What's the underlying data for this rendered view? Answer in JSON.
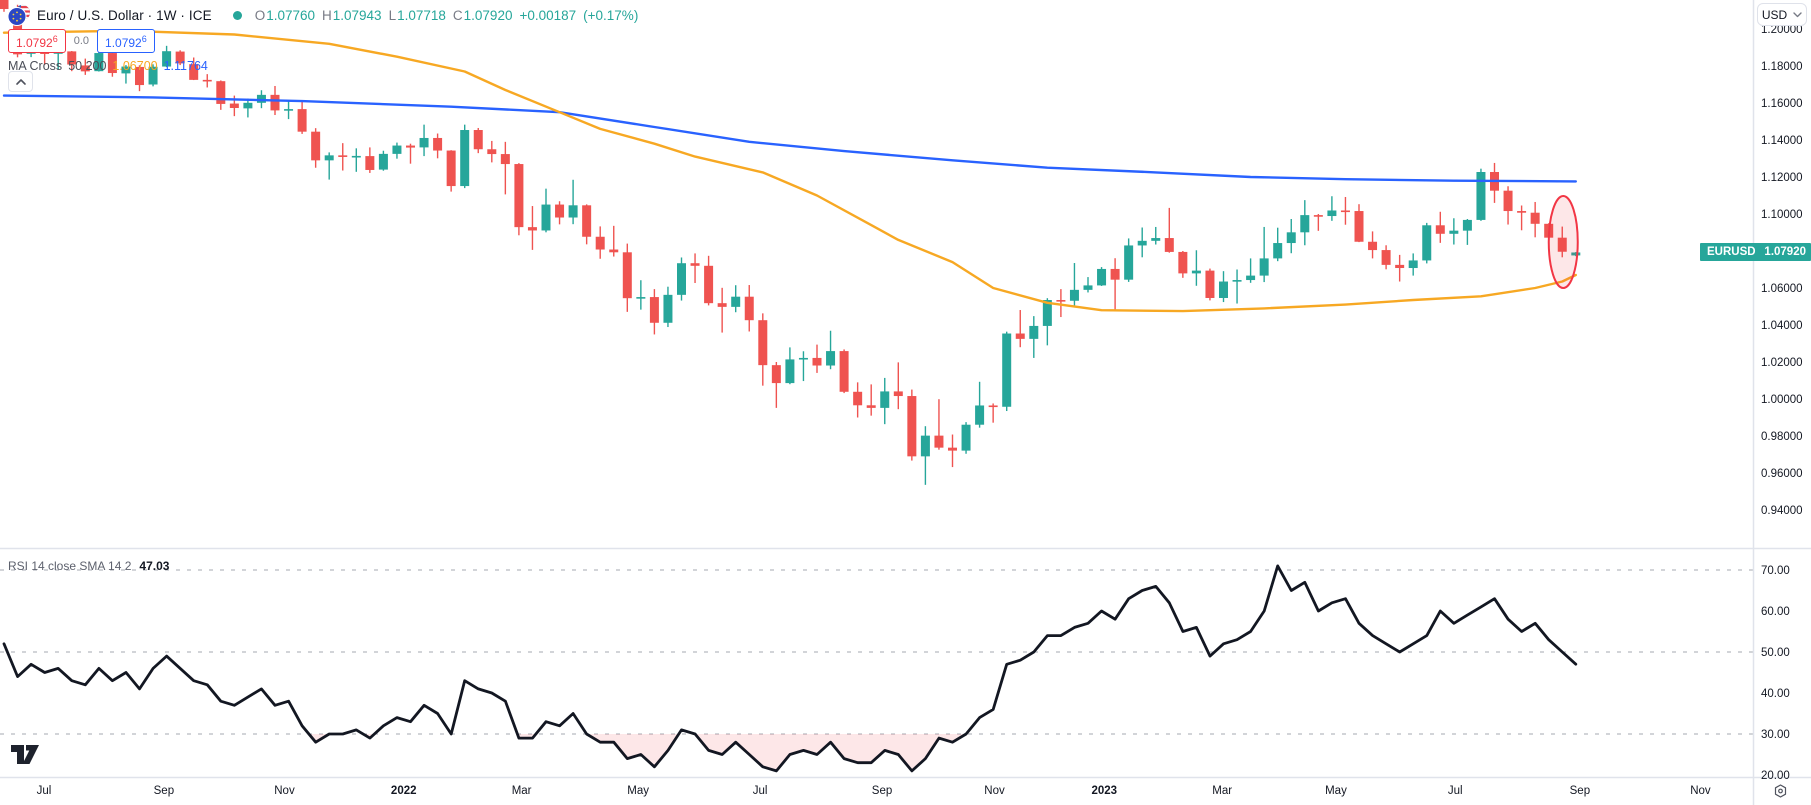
{
  "header": {
    "symbol_title": "Euro / U.S. Dollar · 1W · ICE",
    "ohlc": {
      "o_label": "O",
      "o": "1.07760",
      "h_label": "H",
      "h": "1.07943",
      "l_label": "L",
      "l": "1.07718",
      "c_label": "C",
      "c": "1.07920",
      "change": "+0.00187",
      "change_pct": "(+0.17%)"
    }
  },
  "labels_row": {
    "red_value": "1.0792",
    "red_sup": "6",
    "middle": "0.0",
    "blue_value": "1.0792",
    "blue_sup": "6"
  },
  "ma_row": {
    "name": "MA Cross",
    "params": "50 200",
    "fast_value": "1.06700",
    "slow_value": "1.11764"
  },
  "rsi_row": {
    "name": "RSI 14 close SMA 14 2",
    "value": "47.03"
  },
  "currency_button": {
    "label": "USD"
  },
  "price_pill": {
    "symbol": "EURUSD",
    "price": "1.07920"
  },
  "axes": {
    "price_ticks": [
      {
        "label": "1.20000",
        "value": 1.2
      },
      {
        "label": "1.18000",
        "value": 1.18
      },
      {
        "label": "1.16000",
        "value": 1.16
      },
      {
        "label": "1.14000",
        "value": 1.14
      },
      {
        "label": "1.12000",
        "value": 1.12
      },
      {
        "label": "1.10000",
        "value": 1.1
      },
      {
        "label": "1.06000",
        "value": 1.06
      },
      {
        "label": "1.04000",
        "value": 1.04
      },
      {
        "label": "1.02000",
        "value": 1.02
      },
      {
        "label": "1.00000",
        "value": 1.0
      },
      {
        "label": "0.98000",
        "value": 0.98
      },
      {
        "label": "0.96000",
        "value": 0.96
      },
      {
        "label": "0.94000",
        "value": 0.94
      }
    ],
    "rsi_ticks": [
      {
        "label": "70.00",
        "value": 70
      },
      {
        "label": "60.00",
        "value": 60
      },
      {
        "label": "50.00",
        "value": 50
      },
      {
        "label": "40.00",
        "value": 40
      },
      {
        "label": "30.00",
        "value": 30
      },
      {
        "label": "20.00",
        "value": 20
      }
    ],
    "rsi_dashed_levels": [
      70,
      50,
      30
    ],
    "time_ticks": [
      {
        "label": "Jul",
        "index": 2.95,
        "bold": false
      },
      {
        "label": "Sep",
        "index": 11.8,
        "bold": false
      },
      {
        "label": "Nov",
        "index": 20.7,
        "bold": false
      },
      {
        "label": "2022",
        "index": 29.5,
        "bold": true
      },
      {
        "label": "Mar",
        "index": 38.2,
        "bold": false
      },
      {
        "label": "May",
        "index": 46.8,
        "bold": false
      },
      {
        "label": "Jul",
        "index": 55.8,
        "bold": false
      },
      {
        "label": "Sep",
        "index": 64.8,
        "bold": false
      },
      {
        "label": "Nov",
        "index": 73.1,
        "bold": false
      },
      {
        "label": "2023",
        "index": 81.2,
        "bold": true
      },
      {
        "label": "Mar",
        "index": 89.9,
        "bold": false
      },
      {
        "label": "May",
        "index": 98.3,
        "bold": false
      },
      {
        "label": "Jul",
        "index": 107.1,
        "bold": false
      },
      {
        "label": "Sep",
        "index": 116.3,
        "bold": false
      },
      {
        "label": "Nov",
        "index": 125.2,
        "bold": false
      }
    ]
  },
  "colors": {
    "up": "#26a69a",
    "down": "#ef5350",
    "ma_fast": "#f7a823",
    "ma_slow": "#2962ff",
    "highlight": "#f23645",
    "rsi_line": "#131722",
    "text": "#131722",
    "muted": "#787b86",
    "border": "#e0e3eb",
    "grid_dash": "#a5a8b1",
    "pill_bg": "#26a69a"
  },
  "chart_data": {
    "type": "candlestick",
    "symbol": "EURUSD",
    "timeframe": "1W",
    "exchange": "ICE",
    "title": "Euro / U.S. Dollar",
    "price_axis_range": [
      0.92,
      1.21
    ],
    "rsi_axis_range": [
      17,
      75
    ],
    "legend_position": "top-left",
    "grid": "dashed horizontal lines in RSI pane at 70/50/30 only",
    "candles": [
      [
        "2021-06-07",
        1.2166,
        1.2195,
        1.2093,
        1.2108
      ],
      [
        "2021-06-14",
        1.2109,
        1.2131,
        1.1847,
        1.1863
      ],
      [
        "2021-06-21",
        1.1866,
        1.197,
        1.1848,
        1.1938
      ],
      [
        "2021-06-28",
        1.1937,
        1.1945,
        1.1806,
        1.1865
      ],
      [
        "2021-07-05",
        1.1866,
        1.1895,
        1.1781,
        1.1876
      ],
      [
        "2021-07-12",
        1.1879,
        1.1881,
        1.1772,
        1.1808
      ],
      [
        "2021-07-19",
        1.1803,
        1.184,
        1.1752,
        1.1771
      ],
      [
        "2021-07-26",
        1.1772,
        1.1909,
        1.177,
        1.187
      ],
      [
        "2021-08-02",
        1.187,
        1.1899,
        1.1742,
        1.1762
      ],
      [
        "2021-08-09",
        1.176,
        1.1805,
        1.1705,
        1.1797
      ],
      [
        "2021-08-16",
        1.1795,
        1.1804,
        1.1664,
        1.1697
      ],
      [
        "2021-08-23",
        1.17,
        1.1809,
        1.169,
        1.1796
      ],
      [
        "2021-08-30",
        1.1797,
        1.1909,
        1.1794,
        1.188
      ],
      [
        "2021-09-06",
        1.1878,
        1.1885,
        1.1805,
        1.1814
      ],
      [
        "2021-09-13",
        1.181,
        1.1846,
        1.1724,
        1.1725
      ],
      [
        "2021-09-20",
        1.1725,
        1.1756,
        1.1684,
        1.172
      ],
      [
        "2021-09-27",
        1.1718,
        1.1722,
        1.1563,
        1.1595
      ],
      [
        "2021-10-04",
        1.1597,
        1.164,
        1.1529,
        1.1573
      ],
      [
        "2021-10-11",
        1.1571,
        1.1624,
        1.1522,
        1.1601
      ],
      [
        "2021-10-18",
        1.1601,
        1.1669,
        1.1572,
        1.1644
      ],
      [
        "2021-10-25",
        1.1644,
        1.1692,
        1.1535,
        1.156
      ],
      [
        "2021-11-01",
        1.1562,
        1.1616,
        1.1513,
        1.1567
      ],
      [
        "2021-11-08",
        1.1567,
        1.1609,
        1.1433,
        1.1445
      ],
      [
        "2021-11-15",
        1.1445,
        1.1464,
        1.125,
        1.129
      ],
      [
        "2021-11-22",
        1.129,
        1.1333,
        1.1186,
        1.1317
      ],
      [
        "2021-11-29",
        1.1317,
        1.1383,
        1.1235,
        1.1312
      ],
      [
        "2021-12-06",
        1.1312,
        1.1355,
        1.1228,
        1.1314
      ],
      [
        "2021-12-13",
        1.1313,
        1.136,
        1.1222,
        1.1238
      ],
      [
        "2021-12-20",
        1.124,
        1.1342,
        1.1234,
        1.1325
      ],
      [
        "2021-12-27",
        1.1325,
        1.1386,
        1.1299,
        1.137
      ],
      [
        "2022-01-03",
        1.137,
        1.138,
        1.1272,
        1.1359
      ],
      [
        "2022-01-10",
        1.136,
        1.1483,
        1.1313,
        1.1411
      ],
      [
        "2022-01-17",
        1.1411,
        1.1435,
        1.1301,
        1.1343
      ],
      [
        "2022-01-24",
        1.1343,
        1.1345,
        1.1121,
        1.1151
      ],
      [
        "2022-01-31",
        1.1151,
        1.1483,
        1.114,
        1.1454
      ],
      [
        "2022-02-07",
        1.1454,
        1.1465,
        1.1329,
        1.135
      ],
      [
        "2022-02-14",
        1.135,
        1.1395,
        1.1279,
        1.1324
      ],
      [
        "2022-02-21",
        1.1324,
        1.139,
        1.1106,
        1.127
      ],
      [
        "2022-02-28",
        1.127,
        1.1275,
        1.0885,
        1.0929
      ],
      [
        "2022-03-07",
        1.0929,
        1.1043,
        1.0806,
        1.0911
      ],
      [
        "2022-03-14",
        1.0911,
        1.1137,
        1.0901,
        1.1051
      ],
      [
        "2022-03-21",
        1.1051,
        1.1069,
        1.0944,
        1.0981
      ],
      [
        "2022-03-28",
        1.0981,
        1.1185,
        1.0945,
        1.1047
      ],
      [
        "2022-04-04",
        1.1047,
        1.1052,
        1.0836,
        1.0877
      ],
      [
        "2022-04-11",
        1.0877,
        1.0933,
        1.0758,
        1.0808
      ],
      [
        "2022-04-18",
        1.0808,
        1.0936,
        1.077,
        1.0793
      ],
      [
        "2022-04-25",
        1.0793,
        1.084,
        1.0471,
        1.0545
      ],
      [
        "2022-05-02",
        1.0545,
        1.0642,
        1.0483,
        1.0551
      ],
      [
        "2022-05-09",
        1.0551,
        1.0594,
        1.0349,
        1.0412
      ],
      [
        "2022-05-16",
        1.0412,
        1.0607,
        1.0389,
        1.0563
      ],
      [
        "2022-05-23",
        1.0563,
        1.0765,
        1.0532,
        1.0734
      ],
      [
        "2022-05-30",
        1.0734,
        1.0787,
        1.0627,
        1.072
      ],
      [
        "2022-06-06",
        1.072,
        1.0774,
        1.0506,
        1.0518
      ],
      [
        "2022-06-13",
        1.0518,
        1.0601,
        1.0359,
        1.0498
      ],
      [
        "2022-06-20",
        1.0498,
        1.0615,
        1.0469,
        1.0553
      ],
      [
        "2022-06-27",
        1.0553,
        1.0616,
        1.0365,
        1.0426
      ],
      [
        "2022-07-04",
        1.0426,
        1.0463,
        1.0072,
        1.0183
      ],
      [
        "2022-07-11",
        1.0183,
        1.02,
        0.9952,
        1.0086
      ],
      [
        "2022-07-18",
        1.0086,
        1.0279,
        1.008,
        1.0214
      ],
      [
        "2022-07-25",
        1.0214,
        1.0258,
        1.0097,
        1.0222
      ],
      [
        "2022-08-01",
        1.0222,
        1.0294,
        1.0141,
        1.0181
      ],
      [
        "2022-08-08",
        1.0181,
        1.0369,
        1.0161,
        1.0259
      ],
      [
        "2022-08-15",
        1.0259,
        1.0268,
        1.0032,
        1.0039
      ],
      [
        "2022-08-22",
        1.0039,
        1.009,
        0.99,
        0.9966
      ],
      [
        "2022-08-29",
        0.9966,
        1.0079,
        0.991,
        0.9952
      ],
      [
        "2022-09-05",
        0.9952,
        1.0114,
        0.9864,
        1.0041
      ],
      [
        "2022-09-12",
        1.0041,
        1.0198,
        0.9945,
        1.0016
      ],
      [
        "2022-09-19",
        1.0016,
        1.0051,
        0.9667,
        0.969
      ],
      [
        "2022-09-26",
        0.969,
        0.9853,
        0.9536,
        0.9802
      ],
      [
        "2022-10-03",
        0.9802,
        0.9999,
        0.9726,
        0.9737
      ],
      [
        "2022-10-10",
        0.9737,
        0.9808,
        0.9632,
        0.9721
      ],
      [
        "2022-10-17",
        0.9721,
        0.9875,
        0.9704,
        0.9861
      ],
      [
        "2022-10-24",
        0.9861,
        1.0093,
        0.9845,
        0.9965
      ],
      [
        "2022-10-31",
        0.9965,
        0.9976,
        0.9872,
        0.9958
      ],
      [
        "2022-11-07",
        0.9958,
        1.0364,
        0.9935,
        1.0354
      ],
      [
        "2022-11-14",
        1.0354,
        1.0481,
        1.028,
        1.0325
      ],
      [
        "2022-11-21",
        1.0325,
        1.0448,
        1.0222,
        1.0395
      ],
      [
        "2022-11-28",
        1.0395,
        1.0545,
        1.029,
        1.0535
      ],
      [
        "2022-12-05",
        1.0535,
        1.0594,
        1.0443,
        1.0531
      ],
      [
        "2022-12-12",
        1.0531,
        1.0735,
        1.0503,
        1.059
      ],
      [
        "2022-12-19",
        1.059,
        1.0659,
        1.0576,
        1.0614
      ],
      [
        "2022-12-26",
        1.0614,
        1.0713,
        1.0611,
        1.0703
      ],
      [
        "2023-01-02",
        1.0703,
        1.0761,
        1.0482,
        1.0645
      ],
      [
        "2023-01-09",
        1.0645,
        1.0868,
        1.0633,
        1.083
      ],
      [
        "2023-01-16",
        1.083,
        1.0927,
        1.0766,
        1.0855
      ],
      [
        "2023-01-23",
        1.0855,
        1.093,
        1.0835,
        1.087
      ],
      [
        "2023-01-30",
        1.087,
        1.1033,
        1.0791,
        1.0795
      ],
      [
        "2023-02-06",
        1.0795,
        1.08,
        1.0655,
        1.0679
      ],
      [
        "2023-02-13",
        1.0679,
        1.0804,
        1.0612,
        1.0694
      ],
      [
        "2023-02-20",
        1.0694,
        1.0705,
        1.0533,
        1.0546
      ],
      [
        "2023-02-27",
        1.0546,
        1.0691,
        1.0524,
        1.0635
      ],
      [
        "2023-03-06",
        1.0635,
        1.07,
        1.0516,
        1.0643
      ],
      [
        "2023-03-13",
        1.0643,
        1.076,
        1.0628,
        1.0667
      ],
      [
        "2023-03-20",
        1.0667,
        1.093,
        1.0632,
        1.076
      ],
      [
        "2023-03-27",
        1.076,
        1.0926,
        1.0745,
        1.0843
      ],
      [
        "2023-04-03",
        1.0843,
        1.0973,
        1.0788,
        1.0901
      ],
      [
        "2023-04-10",
        1.0901,
        1.1075,
        1.0831,
        1.0994
      ],
      [
        "2023-04-17",
        1.0994,
        1.1,
        1.0909,
        1.0989
      ],
      [
        "2023-04-24",
        1.0989,
        1.1096,
        1.0963,
        1.1019
      ],
      [
        "2023-05-01",
        1.1019,
        1.1092,
        1.0942,
        1.1016
      ],
      [
        "2023-05-08",
        1.1016,
        1.1053,
        1.0848,
        1.085
      ],
      [
        "2023-05-15",
        1.085,
        1.0906,
        1.076,
        1.0805
      ],
      [
        "2023-05-22",
        1.0805,
        1.0831,
        1.0701,
        1.0725
      ],
      [
        "2023-05-29",
        1.0725,
        1.0779,
        1.0635,
        1.0708
      ],
      [
        "2023-06-05",
        1.0708,
        1.0787,
        1.0667,
        1.0749
      ],
      [
        "2023-06-12",
        1.0749,
        1.0952,
        1.0733,
        1.0939
      ],
      [
        "2023-06-19",
        1.0939,
        1.1012,
        1.0844,
        1.0893
      ],
      [
        "2023-06-26",
        1.0893,
        1.0977,
        1.0835,
        1.091
      ],
      [
        "2023-07-03",
        1.091,
        1.0973,
        1.0833,
        1.0968
      ],
      [
        "2023-07-10",
        1.0968,
        1.1245,
        1.0963,
        1.1227
      ],
      [
        "2023-07-17",
        1.1227,
        1.1276,
        1.106,
        1.1126
      ],
      [
        "2023-07-24",
        1.1126,
        1.115,
        1.0943,
        1.1016
      ],
      [
        "2023-07-31",
        1.1016,
        1.1046,
        1.0912,
        1.1007
      ],
      [
        "2023-08-07",
        1.1007,
        1.1065,
        1.0874,
        1.0947
      ],
      [
        "2023-08-14",
        1.0947,
        1.095,
        1.0832,
        1.0872
      ],
      [
        "2023-08-21",
        1.0872,
        1.0932,
        1.0766,
        1.0796
      ],
      [
        "2023-08-28",
        1.0776,
        1.0794,
        1.0772,
        1.0792
      ]
    ],
    "ma50_points": [
      [
        0,
        1.198
      ],
      [
        9,
        1.199
      ],
      [
        17,
        1.197
      ],
      [
        24,
        1.192
      ],
      [
        29,
        1.185
      ],
      [
        34,
        1.177
      ],
      [
        37,
        1.167
      ],
      [
        41,
        1.155
      ],
      [
        44,
        1.146
      ],
      [
        48,
        1.138
      ],
      [
        51,
        1.131
      ],
      [
        56,
        1.1225
      ],
      [
        60,
        1.11
      ],
      [
        64,
        1.094
      ],
      [
        66,
        1.086
      ],
      [
        70,
        1.074
      ],
      [
        73,
        1.06
      ],
      [
        77,
        1.052
      ],
      [
        81,
        1.048
      ],
      [
        87,
        1.0475
      ],
      [
        93,
        1.049
      ],
      [
        99,
        1.051
      ],
      [
        104,
        1.0535
      ],
      [
        109,
        1.0555
      ],
      [
        113,
        1.06
      ],
      [
        115,
        1.0635
      ],
      [
        116,
        1.067
      ]
    ],
    "ma200_points": [
      [
        0,
        1.164
      ],
      [
        11,
        1.163
      ],
      [
        22,
        1.161
      ],
      [
        33,
        1.158
      ],
      [
        41,
        1.155
      ],
      [
        48,
        1.147
      ],
      [
        55,
        1.139
      ],
      [
        62,
        1.134
      ],
      [
        70,
        1.129
      ],
      [
        77,
        1.125
      ],
      [
        85,
        1.1225
      ],
      [
        92,
        1.12
      ],
      [
        99,
        1.1188
      ],
      [
        107,
        1.118
      ],
      [
        116,
        1.11764
      ]
    ],
    "rsi": [
      52,
      44,
      47,
      45,
      46,
      43,
      42,
      46,
      43,
      45,
      41,
      46,
      49,
      46,
      43,
      42,
      38,
      37,
      39,
      41,
      37,
      38,
      32,
      28,
      30,
      30,
      31,
      29,
      32,
      34,
      33,
      37,
      35,
      30,
      43,
      41,
      40,
      38,
      29,
      29,
      33,
      32,
      35,
      30,
      28,
      28,
      24,
      25,
      22,
      26,
      31,
      30,
      26,
      25,
      28,
      25,
      22,
      21,
      25,
      26,
      25,
      28,
      24,
      23,
      23,
      26,
      25,
      21,
      24,
      29,
      28,
      30,
      34,
      36,
      47,
      48,
      50,
      54,
      54,
      56,
      57,
      60,
      58,
      63,
      65,
      66,
      62,
      55,
      56,
      49,
      52,
      53,
      55,
      60,
      71,
      65,
      67,
      60,
      62,
      63,
      57,
      54,
      52,
      50,
      52,
      54,
      60,
      57,
      59,
      61,
      63,
      58,
      55,
      57,
      53,
      50,
      47.03
    ],
    "rsi_current": 47.03,
    "highlight_ellipse": {
      "around_bars": [
        115,
        116
      ],
      "style": "red outline, translucent red fill"
    }
  }
}
